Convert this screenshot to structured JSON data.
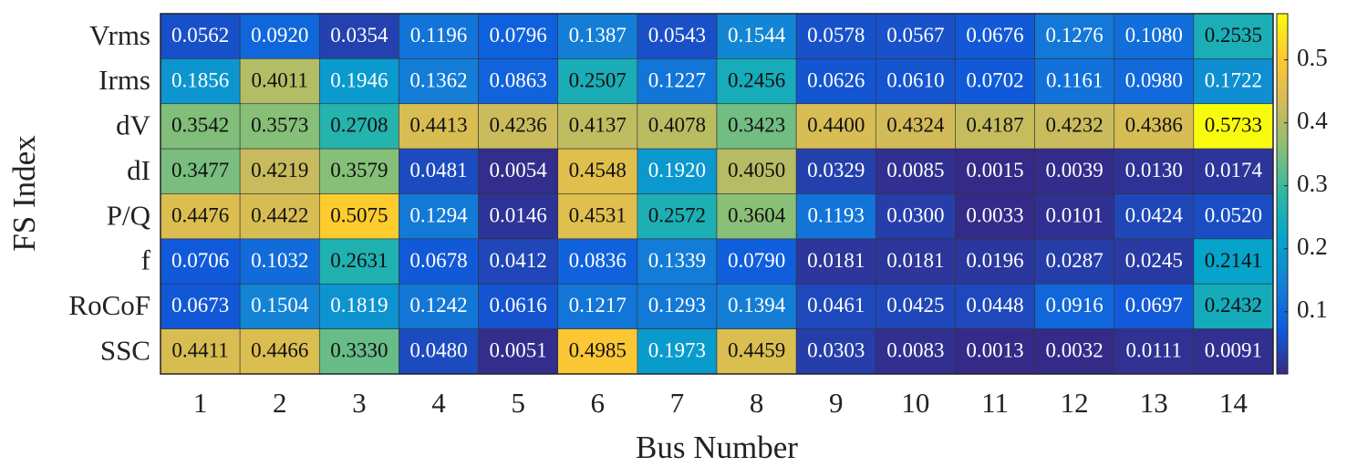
{
  "chart_data": {
    "type": "heatmap",
    "xlabel": "Bus Number",
    "ylabel": "FS Index",
    "categories": [
      1,
      2,
      3,
      4,
      5,
      6,
      7,
      8,
      9,
      10,
      11,
      12,
      13,
      14
    ],
    "y_categories": [
      "Vrms",
      "Irms",
      "dV",
      "dI",
      "P/Q",
      "f",
      "RoCoF",
      "SSC"
    ],
    "values": [
      [
        0.0562,
        0.092,
        0.0354,
        0.1196,
        0.0796,
        0.1387,
        0.0543,
        0.1544,
        0.0578,
        0.0567,
        0.0676,
        0.1276,
        0.108,
        0.2535
      ],
      [
        0.1856,
        0.4011,
        0.1946,
        0.1362,
        0.0863,
        0.2507,
        0.1227,
        0.2456,
        0.0626,
        0.061,
        0.0702,
        0.1161,
        0.098,
        0.1722
      ],
      [
        0.3542,
        0.3573,
        0.2708,
        0.4413,
        0.4236,
        0.4137,
        0.4078,
        0.3423,
        0.44,
        0.4324,
        0.4187,
        0.4232,
        0.4386,
        0.5733
      ],
      [
        0.3477,
        0.4219,
        0.3579,
        0.0481,
        0.0054,
        0.4548,
        0.192,
        0.405,
        0.0329,
        0.0085,
        0.0015,
        0.0039,
        0.013,
        0.0174
      ],
      [
        0.4476,
        0.4422,
        0.5075,
        0.1294,
        0.0146,
        0.4531,
        0.2572,
        0.3604,
        0.1193,
        0.03,
        0.0033,
        0.0101,
        0.0424,
        0.052
      ],
      [
        0.0706,
        0.1032,
        0.2631,
        0.0678,
        0.0412,
        0.0836,
        0.1339,
        0.079,
        0.0181,
        0.0181,
        0.0196,
        0.0287,
        0.0245,
        0.2141
      ],
      [
        0.0673,
        0.1504,
        0.1819,
        0.1242,
        0.0616,
        0.1217,
        0.1293,
        0.1394,
        0.0461,
        0.0425,
        0.0448,
        0.0916,
        0.0697,
        0.2432
      ],
      [
        0.4411,
        0.4466,
        0.333,
        0.048,
        0.0051,
        0.4985,
        0.1973,
        0.4459,
        0.0303,
        0.0083,
        0.0013,
        0.0032,
        0.0111,
        0.0091
      ]
    ],
    "value_labels": [
      [
        "0.0562",
        "0.0920",
        "0.0354",
        "0.1196",
        "0.0796",
        "0.1387",
        "0.0543",
        "0.1544",
        "0.0578",
        "0.0567",
        "0.0676",
        "0.1276",
        "0.1080",
        "0.2535"
      ],
      [
        "0.1856",
        "0.4011",
        "0.1946",
        "0.1362",
        "0.0863",
        "0.2507",
        "0.1227",
        "0.2456",
        "0.0626",
        "0.0610",
        "0.0702",
        "0.1161",
        "0.0980",
        "0.1722"
      ],
      [
        "0.3542",
        "0.3573",
        "0.2708",
        "0.4413",
        "0.4236",
        "0.4137",
        "0.4078",
        "0.3423",
        "0.4400",
        "0.4324",
        "0.4187",
        "0.4232",
        "0.4386",
        "0.5733"
      ],
      [
        "0.3477",
        "0.4219",
        "0.3579",
        "0.0481",
        "0.0054",
        "0.4548",
        "0.1920",
        "0.4050",
        "0.0329",
        "0.0085",
        "0.0015",
        "0.0039",
        "0.0130",
        "0.0174"
      ],
      [
        "0.4476",
        "0.4422",
        "0.5075",
        "0.1294",
        "0.0146",
        "0.4531",
        "0.2572",
        "0.3604",
        "0.1193",
        "0.0300",
        "0.0033",
        "0.0101",
        "0.0424",
        "0.0520"
      ],
      [
        "0.0706",
        "0.1032",
        "0.2631",
        "0.0678",
        "0.0412",
        "0.0836",
        "0.1339",
        "0.0790",
        "0.0181",
        "0.0181",
        "0.0196",
        "0.0287",
        "0.0245",
        "0.2141"
      ],
      [
        "0.0673",
        "0.1504",
        "0.1819",
        "0.1242",
        "0.0616",
        "0.1217",
        "0.1293",
        "0.1394",
        "0.0461",
        "0.0425",
        "0.0448",
        "0.0916",
        "0.0697",
        "0.2432"
      ],
      [
        "0.4411",
        "0.4466",
        "0.3330",
        "0.0480",
        "0.0051",
        "0.4985",
        "0.1973",
        "0.4459",
        "0.0303",
        "0.0083",
        "0.0013",
        "0.0032",
        "0.0111",
        "0.0091"
      ]
    ],
    "colormap": "parula",
    "zlim": [
      0.0013,
      0.5733
    ],
    "zticks": [
      0.1,
      0.2,
      0.3,
      0.4,
      0.5
    ]
  }
}
